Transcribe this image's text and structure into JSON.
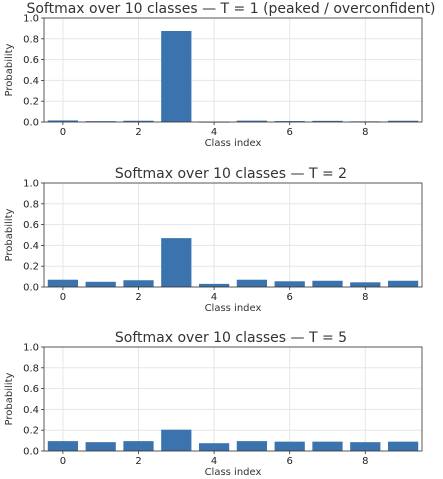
{
  "chart_data": [
    {
      "type": "bar",
      "title": "Softmax over 10 classes — T = 1 (peaked / overconfident)",
      "xlabel": "Class index",
      "ylabel": "Probability",
      "categories": [
        0,
        1,
        2,
        3,
        4,
        5,
        6,
        7,
        8,
        9
      ],
      "values": [
        0.015,
        0.008,
        0.012,
        0.875,
        0.002,
        0.013,
        0.009,
        0.011,
        0.006,
        0.012
      ],
      "ylim": [
        0,
        1.0
      ],
      "yticks": [
        "0.0",
        "0.2",
        "0.4",
        "0.6",
        "0.8",
        "1.0"
      ],
      "xticks": [
        "0",
        "2",
        "4",
        "6",
        "8"
      ],
      "grid": true,
      "color": "#3b73ae"
    },
    {
      "type": "bar",
      "title": "Softmax over 10 classes — T = 2",
      "xlabel": "Class index",
      "ylabel": "Probability",
      "categories": [
        0,
        1,
        2,
        3,
        4,
        5,
        6,
        7,
        8,
        9
      ],
      "values": [
        0.07,
        0.05,
        0.065,
        0.47,
        0.03,
        0.07,
        0.055,
        0.06,
        0.045,
        0.06
      ],
      "ylim": [
        0,
        1.0
      ],
      "yticks": [
        "0.0",
        "0.2",
        "0.4",
        "0.6",
        "0.8",
        "1.0"
      ],
      "xticks": [
        "0",
        "2",
        "4",
        "6",
        "8"
      ],
      "grid": true,
      "color": "#3b73ae"
    },
    {
      "type": "bar",
      "title": "Softmax over 10 classes — T = 5",
      "xlabel": "Class index",
      "ylabel": "Probability",
      "categories": [
        0,
        1,
        2,
        3,
        4,
        5,
        6,
        7,
        8,
        9
      ],
      "values": [
        0.095,
        0.085,
        0.095,
        0.205,
        0.075,
        0.095,
        0.09,
        0.09,
        0.085,
        0.09
      ],
      "ylim": [
        0,
        1.0
      ],
      "yticks": [
        "0.0",
        "0.2",
        "0.4",
        "0.6",
        "0.8",
        "1.0"
      ],
      "xticks": [
        "0",
        "2",
        "4",
        "6",
        "8"
      ],
      "grid": true,
      "color": "#3b73ae"
    }
  ]
}
